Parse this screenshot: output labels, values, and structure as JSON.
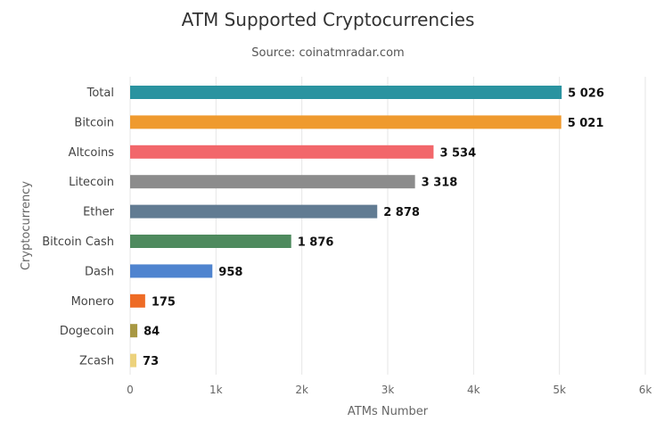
{
  "chart_data": {
    "type": "bar",
    "orientation": "horizontal",
    "title": "ATM Supported Cryptocurrencies",
    "subtitle": "Source: coinatmradar.com",
    "xlabel": "ATMs Number",
    "ylabel": "Cryptocurrency",
    "xlim": [
      0,
      6000
    ],
    "ticks": [
      0,
      1000,
      2000,
      3000,
      4000,
      5000,
      6000
    ],
    "tick_labels": [
      "0",
      "1k",
      "2k",
      "3k",
      "4k",
      "5k",
      "6k"
    ],
    "grid": true,
    "categories": [
      "Total",
      "Bitcoin",
      "Altcoins",
      "Litecoin",
      "Ether",
      "Bitcoin Cash",
      "Dash",
      "Monero",
      "Dogecoin",
      "Zcash"
    ],
    "values": [
      5026,
      5021,
      3534,
      3318,
      2878,
      1876,
      958,
      175,
      84,
      73
    ],
    "value_labels": [
      "5 026",
      "5 021",
      "3 534",
      "3 318",
      "2 878",
      "1 876",
      "958",
      "175",
      "84",
      "73"
    ],
    "colors": [
      "#2a93a0",
      "#ef9a2e",
      "#f2676b",
      "#8c8c8c",
      "#617b92",
      "#4e8a5e",
      "#4f84cf",
      "#ee6b25",
      "#a89843",
      "#ecd27c"
    ]
  }
}
